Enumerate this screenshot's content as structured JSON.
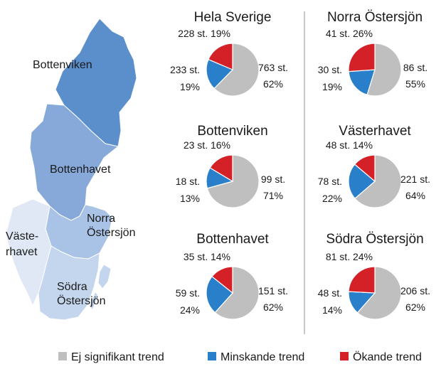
{
  "chart_data": {
    "type": "pie",
    "legend": {
      "placement": "bottom",
      "items": [
        {
          "label": "Ej signifikant trend",
          "color": "#bfbfbf"
        },
        {
          "label": "Minskande trend",
          "color": "#2a7fcb"
        },
        {
          "label": "Ökande trend",
          "color": "#d42027"
        }
      ]
    },
    "map": {
      "regions": [
        {
          "name": "Bottenviken",
          "color": "#5a8fcc"
        },
        {
          "name": "Bottenhavet",
          "color": "#86a9d9"
        },
        {
          "name": "Norra Östersjön",
          "color": "#a8c3e6"
        },
        {
          "name": "Västerhavet",
          "color": "#dfe8f4"
        },
        {
          "name": "Södra Östersjön",
          "color": "#c4d6ee"
        }
      ]
    },
    "pies": [
      {
        "title": "Hela Sverige",
        "slices": [
          {
            "category": "Ej signifikant trend",
            "count": 763,
            "count_label": "763 st.",
            "percent_label": "62%"
          },
          {
            "category": "Minskande trend",
            "count": 233,
            "count_label": "233 st.",
            "percent_label": "19%"
          },
          {
            "category": "Ökande trend",
            "count": 228,
            "count_label": "228 st.",
            "percent_label": "19%"
          }
        ]
      },
      {
        "title": "Norra Östersjön",
        "slices": [
          {
            "category": "Ej signifikant trend",
            "count": 86,
            "count_label": "86 st.",
            "percent_label": "55%"
          },
          {
            "category": "Minskande trend",
            "count": 30,
            "count_label": "30 st.",
            "percent_label": "19%"
          },
          {
            "category": "Ökande trend",
            "count": 41,
            "count_label": "41 st.",
            "percent_label": "26%"
          }
        ]
      },
      {
        "title": "Bottenviken",
        "slices": [
          {
            "category": "Ej signifikant trend",
            "count": 99,
            "count_label": "99 st.",
            "percent_label": "71%"
          },
          {
            "category": "Minskande trend",
            "count": 18,
            "count_label": "18 st.",
            "percent_label": "13%"
          },
          {
            "category": "Ökande trend",
            "count": 23,
            "count_label": "23 st.",
            "percent_label": "16%"
          }
        ]
      },
      {
        "title": "Västerhavet",
        "slices": [
          {
            "category": "Ej signifikant trend",
            "count": 221,
            "count_label": "221 st.",
            "percent_label": "64%"
          },
          {
            "category": "Minskande trend",
            "count": 78,
            "count_label": "78 st.",
            "percent_label": "22%"
          },
          {
            "category": "Ökande trend",
            "count": 48,
            "count_label": "48 st.",
            "percent_label": "14%"
          }
        ]
      },
      {
        "title": "Bottenhavet",
        "slices": [
          {
            "category": "Ej signifikant trend",
            "count": 151,
            "count_label": "151 st.",
            "percent_label": "62%"
          },
          {
            "category": "Minskande trend",
            "count": 59,
            "count_label": "59 st.",
            "percent_label": "24%"
          },
          {
            "category": "Ökande trend",
            "count": 35,
            "count_label": "35 st.",
            "percent_label": "14%"
          }
        ]
      },
      {
        "title": "Södra Östersjön",
        "slices": [
          {
            "category": "Ej signifikant trend",
            "count": 206,
            "count_label": "206 st.",
            "percent_label": "62%"
          },
          {
            "category": "Minskande trend",
            "count": 48,
            "count_label": "48 st.",
            "percent_label": "14%"
          },
          {
            "category": "Ökande trend",
            "count": 81,
            "count_label": "81 st.",
            "percent_label": "24%"
          }
        ]
      }
    ]
  }
}
